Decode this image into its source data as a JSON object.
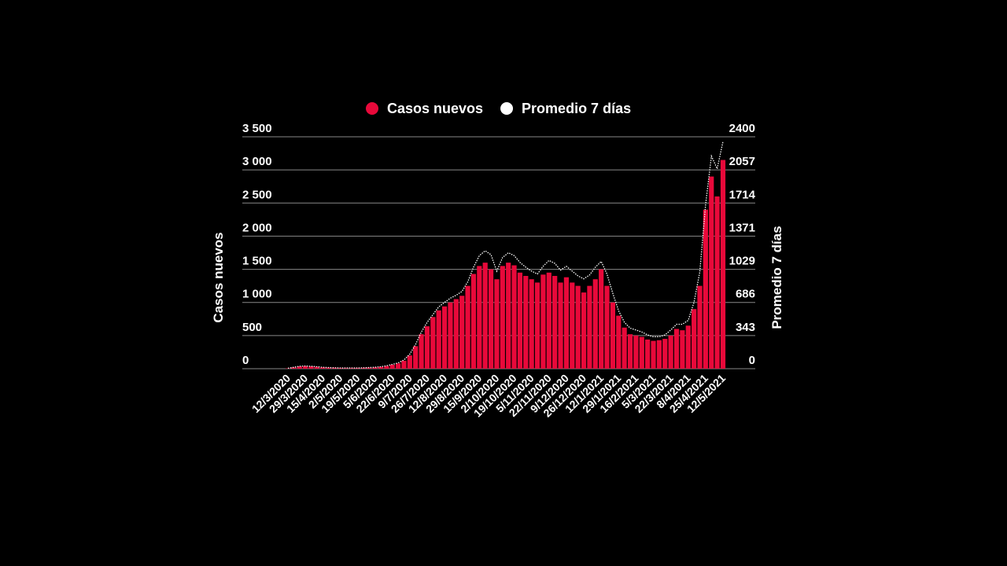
{
  "chart_data": {
    "type": "bar",
    "categories": [
      "12/3/2020",
      null,
      null,
      "29/3/2020",
      null,
      null,
      "15/4/2020",
      null,
      null,
      "2/5/2020",
      null,
      null,
      "19/5/2020",
      null,
      null,
      "5/6/2020",
      null,
      null,
      "22/6/2020",
      null,
      null,
      "9/7/2020",
      null,
      null,
      "26/7/2020",
      null,
      null,
      "12/8/2020",
      null,
      null,
      "29/8/2020",
      null,
      null,
      "15/9/2020",
      null,
      null,
      "2/10/2020",
      null,
      null,
      "19/10/2020",
      null,
      null,
      "5/11/2020",
      null,
      null,
      "22/11/2020",
      null,
      null,
      "9/12/2020",
      null,
      null,
      "26/12/2020",
      null,
      null,
      "12/1/2021",
      null,
      null,
      "29/1/2021",
      null,
      null,
      "16/2/2021",
      null,
      null,
      "5/3/2021",
      null,
      null,
      "22/3/2021",
      null,
      null,
      "8/4/2021",
      null,
      null,
      "25/4/2021",
      null,
      null,
      "12/5/2021"
    ],
    "series": [
      {
        "name": "Casos nuevos",
        "type": "bar",
        "color": "#e8093a",
        "values": [
          6,
          20,
          35,
          40,
          35,
          28,
          20,
          16,
          14,
          11,
          10,
          10,
          11,
          13,
          16,
          20,
          28,
          40,
          60,
          80,
          120,
          200,
          340,
          520,
          640,
          780,
          880,
          940,
          1000,
          1050,
          1100,
          1250,
          1430,
          1550,
          1600,
          1500,
          1350,
          1550,
          1600,
          1560,
          1450,
          1400,
          1350,
          1300,
          1420,
          1450,
          1400,
          1300,
          1380,
          1300,
          1250,
          1150,
          1250,
          1350,
          1500,
          1250,
          1000,
          800,
          620,
          520,
          500,
          480,
          440,
          420,
          430,
          450,
          500,
          600,
          580,
          650,
          900,
          1250,
          2400,
          2900,
          2600,
          3150
        ]
      },
      {
        "name": "Promedio 7 días",
        "type": "line",
        "axis": "y2",
        "color": "#ffffff",
        "values": [
          5,
          15,
          25,
          28,
          25,
          20,
          15,
          12,
          10,
          8,
          8,
          8,
          8,
          10,
          12,
          15,
          20,
          30,
          45,
          60,
          90,
          150,
          250,
          380,
          480,
          560,
          640,
          686,
          730,
          760,
          800,
          900,
          1050,
          1170,
          1220,
          1180,
          1010,
          1150,
          1200,
          1170,
          1100,
          1050,
          1010,
          980,
          1060,
          1120,
          1090,
          1020,
          1060,
          1010,
          960,
          930,
          970,
          1050,
          1110,
          980,
          780,
          600,
          480,
          420,
          400,
          380,
          350,
          330,
          330,
          350,
          400,
          460,
          460,
          500,
          686,
          1000,
          1700,
          2200,
          2070,
          2350
        ]
      }
    ],
    "ylabel": "Casos nuevos",
    "y2label": "Promedio 7 días",
    "ylim": [
      0,
      3500
    ],
    "yticks": [
      0,
      500,
      {
        "value": 1000,
        "label": "1 000"
      },
      {
        "value": 1500,
        "label": "1 500"
      },
      {
        "value": 2000,
        "label": "2 000"
      },
      {
        "value": 2500,
        "label": "2 500"
      },
      {
        "value": 3000,
        "label": "3 000"
      },
      {
        "value": 3500,
        "label": "3 500"
      }
    ],
    "y2lim": [
      0,
      2400
    ],
    "y2ticks": [
      0,
      343,
      686,
      1029,
      1371,
      1714,
      2057,
      2400
    ],
    "grid": true
  }
}
